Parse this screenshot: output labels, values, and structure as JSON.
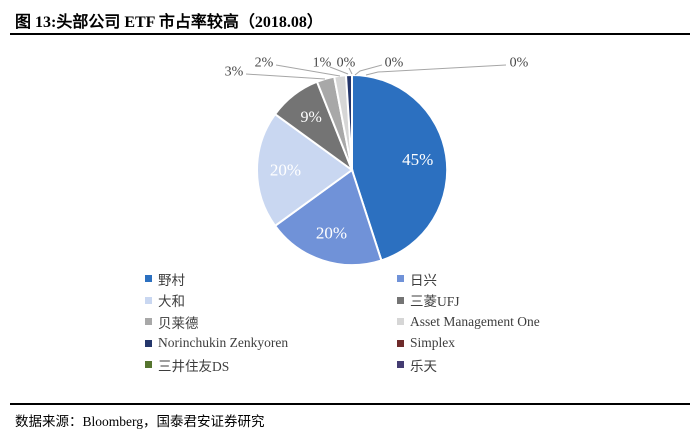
{
  "header": {
    "title": "图 13:头部公司 ETF 市占率较高（2018.08）"
  },
  "footer": {
    "source": "数据来源：Bloomberg，国泰君安证券研究"
  },
  "chart_data": {
    "type": "pie",
    "title": "图 13:头部公司 ETF 市占率较高（2018.08）",
    "unit": "%",
    "start_angle_deg": 0,
    "direction": "clockwise",
    "legend_position": "bottom",
    "legend_columns": 2,
    "slice_border_color": "#ffffff",
    "leader_line_color": "#a6a6a6",
    "inside_label_color": "#ffffff",
    "outside_label_color": "#474747",
    "series": [
      {
        "name": "野村",
        "value": 45,
        "color": "#2c70c0",
        "label": "45%",
        "label_placement": "inside"
      },
      {
        "name": "日兴",
        "value": 20,
        "color": "#7092d8",
        "label": "20%",
        "label_placement": "inside"
      },
      {
        "name": "大和",
        "value": 20,
        "color": "#c9d7f1",
        "label": "20%",
        "label_placement": "inside"
      },
      {
        "name": "三菱UFJ",
        "value": 9,
        "color": "#747474",
        "label": "9%",
        "label_placement": "inside"
      },
      {
        "name": "贝莱德",
        "value": 3,
        "color": "#a8a8a8",
        "label": "3%",
        "label_placement": "outside"
      },
      {
        "name": "Asset Management One",
        "value": 2,
        "color": "#d6d6d6",
        "label": "2%",
        "label_placement": "outside"
      },
      {
        "name": "Norinchukin Zenkyoren",
        "value": 1,
        "color": "#24366b",
        "label": "1%",
        "label_placement": "outside"
      },
      {
        "name": "Simplex",
        "value": 0,
        "color": "#6e2a2a",
        "label": "0%",
        "label_placement": "outside"
      },
      {
        "name": "三井住友DS",
        "value": 0,
        "color": "#56752f",
        "label": "0%",
        "label_placement": "outside"
      },
      {
        "name": "乐天",
        "value": 0,
        "color": "#443c72",
        "label": "0%",
        "label_placement": "outside"
      }
    ]
  }
}
